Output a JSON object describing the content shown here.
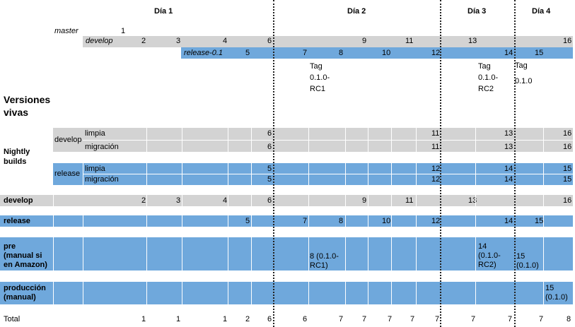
{
  "days": [
    "Día 1",
    "Día 2",
    "Día 3",
    "Día 4"
  ],
  "branches": {
    "master": "master",
    "master_num": "1",
    "develop": "develop",
    "develop_nums": [
      "2",
      "3",
      "4",
      "6",
      "9",
      "11",
      "13",
      "16"
    ],
    "release": "release-0.1",
    "release_nums": [
      "5",
      "7",
      "8",
      "10",
      "12",
      "14",
      "15"
    ]
  },
  "tags": {
    "t1": [
      "Tag",
      "0.1.0-",
      "RC1"
    ],
    "t2": [
      "Tag",
      "0.1.0-",
      "RC2"
    ],
    "t3": [
      "Tag",
      "0.1.0"
    ]
  },
  "sections": {
    "versiones_vivas": [
      "Versiones",
      "vivas"
    ],
    "nightly": [
      "Nightly",
      "builds"
    ],
    "develop_label": "develop",
    "release_label": "release",
    "limpia": "limpia",
    "migracion": "migración"
  },
  "nightly_nums": {
    "dev_limpia": [
      "6",
      "11",
      "13",
      "16"
    ],
    "dev_migracion": [
      "6",
      "11",
      "13",
      "16"
    ],
    "rel_limpia": [
      "5",
      "12",
      "14",
      "15"
    ],
    "rel_migracion": [
      "5",
      "12",
      "14",
      "15"
    ]
  },
  "rows": {
    "develop": {
      "label": "develop",
      "nums": [
        "2",
        "3",
        "4",
        "6",
        "9",
        "11",
        "13",
        "16"
      ]
    },
    "release": {
      "label": "release",
      "nums": [
        "5",
        "7",
        "8",
        "10",
        "12",
        "14",
        "15"
      ]
    },
    "pre": {
      "label": [
        "pre",
        "(manual si",
        "en Amazon)"
      ],
      "v1": [
        "8 (0.1.0-",
        "RC1)"
      ],
      "v2": [
        "14",
        "(0.1.0-",
        "RC2)"
      ],
      "v3": [
        "15",
        "(0.1.0)"
      ]
    },
    "produccion": {
      "label": [
        "producción",
        "(manual)"
      ],
      "v1": [
        "15",
        "(0.1.0)"
      ]
    }
  },
  "total": {
    "label": "Total",
    "values": [
      "1",
      "1",
      "1",
      "2",
      "6",
      "6",
      "7",
      "7",
      "7",
      "7",
      "7",
      "7",
      "7",
      "7",
      "8"
    ]
  }
}
